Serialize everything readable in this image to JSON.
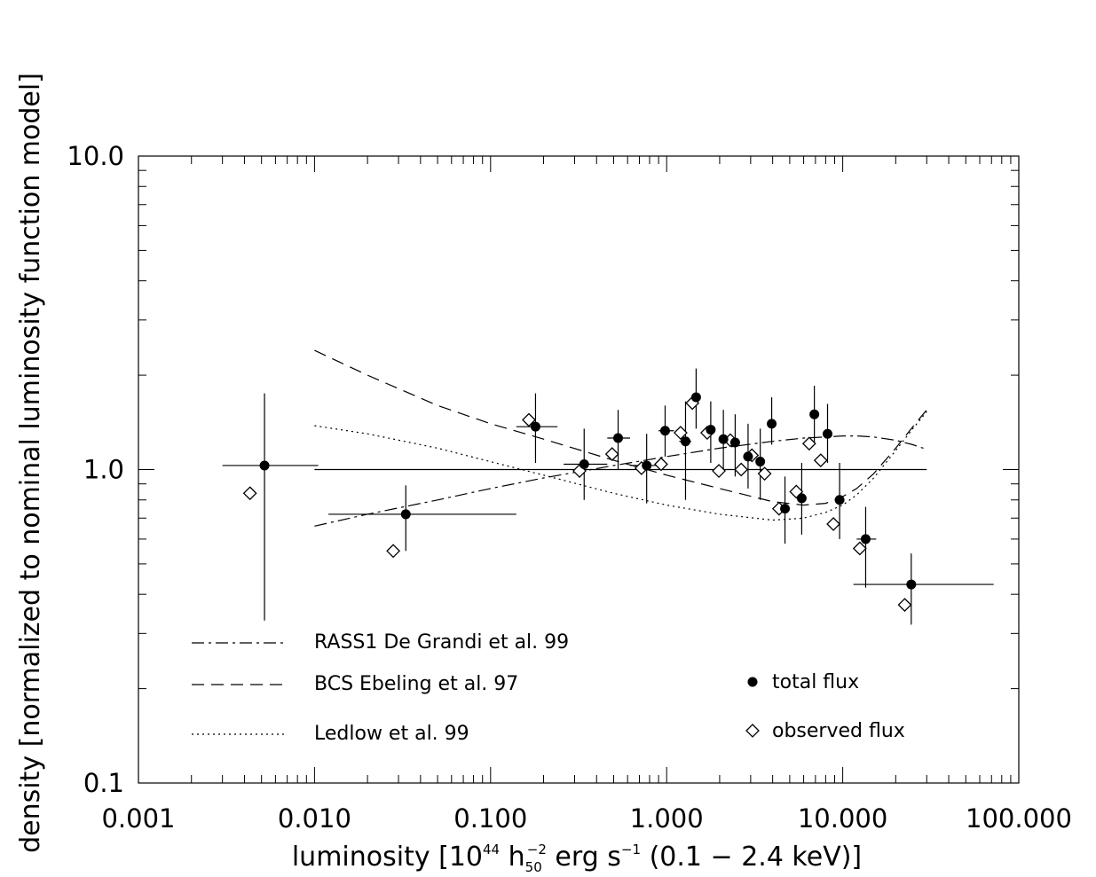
{
  "chart_data": {
    "type": "scatter",
    "xlabel": {
      "main": "luminosity [10",
      "exp1": "44",
      "h": " h",
      "hsub": "50",
      "hsup": "−2",
      "unit": " erg s",
      "unitsup": "−1",
      "tail": " (0.1 − 2.4 keV)]"
    },
    "ylabel": "density [normalized to nominal luminosity function model]",
    "xscale": "log",
    "yscale": "log",
    "xlim": [
      0.001,
      100
    ],
    "ylim": [
      0.1,
      10
    ],
    "xtick_labels": [
      {
        "v": 0.001,
        "t": "0.001"
      },
      {
        "v": 0.01,
        "t": "0.010"
      },
      {
        "v": 0.1,
        "t": "0.100"
      },
      {
        "v": 1,
        "t": "1.000"
      },
      {
        "v": 10,
        "t": "10.000"
      },
      {
        "v": 100,
        "t": "100.000"
      }
    ],
    "ytick_labels": [
      {
        "v": 0.1,
        "t": "0.1"
      },
      {
        "v": 1,
        "t": "1.0"
      },
      {
        "v": 10,
        "t": "10.0"
      }
    ],
    "reference_line": {
      "y": 1.0,
      "x": [
        0.01,
        30
      ]
    },
    "series": [
      {
        "name": "total flux",
        "marker": "filled-circle",
        "points": [
          {
            "x": 0.0052,
            "y": 1.03,
            "xerr": [
              0.003,
              0.0105
            ],
            "yerr": [
              0.33,
              1.75
            ]
          },
          {
            "x": 0.033,
            "y": 0.72,
            "xerr": [
              0.012,
              0.14
            ],
            "yerr": [
              0.55,
              0.89
            ]
          },
          {
            "x": 0.18,
            "y": 1.37,
            "xerr": [
              0.14,
              0.24
            ],
            "yerr": [
              1.05,
              1.75
            ]
          },
          {
            "x": 0.34,
            "y": 1.04,
            "xerr": [
              0.26,
              0.46
            ],
            "yerr": [
              0.8,
              1.35
            ]
          },
          {
            "x": 0.53,
            "y": 1.26,
            "xerr": [
              0.46,
              0.62
            ],
            "yerr": [
              1.0,
              1.55
            ]
          },
          {
            "x": 0.77,
            "y": 1.03,
            "xerr": [
              0.62,
              0.9
            ],
            "yerr": [
              0.78,
              1.3
            ]
          },
          {
            "x": 0.98,
            "y": 1.33,
            "xerr": [
              0.9,
              1.1
            ],
            "yerr": [
              1.1,
              1.6
            ]
          },
          {
            "x": 1.28,
            "y": 1.23,
            "xerr": [
              1.18,
              1.38
            ],
            "yerr": [
              0.8,
              1.65
            ]
          },
          {
            "x": 1.47,
            "y": 1.7,
            "xerr": [
              1.4,
              1.55
            ],
            "yerr": [
              1.35,
              2.1
            ]
          },
          {
            "x": 1.78,
            "y": 1.34,
            "xerr": [
              1.68,
              1.88
            ],
            "yerr": [
              1.05,
              1.65
            ]
          },
          {
            "x": 2.1,
            "y": 1.25,
            "xerr": [
              2.0,
              2.2
            ],
            "yerr": [
              1.0,
              1.55
            ]
          },
          {
            "x": 2.45,
            "y": 1.22,
            "xerr": [
              2.35,
              2.55
            ],
            "yerr": [
              0.95,
              1.5
            ]
          },
          {
            "x": 2.9,
            "y": 1.1,
            "xerr": [
              2.8,
              3.0
            ],
            "yerr": [
              0.87,
              1.4
            ]
          },
          {
            "x": 3.4,
            "y": 1.06,
            "xerr": [
              3.3,
              3.5
            ],
            "yerr": [
              0.8,
              1.35
            ]
          },
          {
            "x": 3.95,
            "y": 1.4,
            "xerr": [
              3.85,
              4.05
            ],
            "yerr": [
              1.2,
              1.7
            ]
          },
          {
            "x": 4.7,
            "y": 0.75,
            "xerr": [
              4.5,
              4.9
            ],
            "yerr": [
              0.58,
              0.95
            ]
          },
          {
            "x": 5.85,
            "y": 0.81,
            "xerr": [
              5.6,
              6.1
            ],
            "yerr": [
              0.62,
              1.05
            ]
          },
          {
            "x": 6.9,
            "y": 1.5,
            "xerr": [
              6.6,
              7.2
            ],
            "yerr": [
              1.2,
              1.85
            ]
          },
          {
            "x": 8.2,
            "y": 1.3,
            "xerr": [
              7.9,
              8.5
            ],
            "yerr": [
              1.05,
              1.62
            ]
          },
          {
            "x": 9.6,
            "y": 0.8,
            "xerr": [
              9.2,
              10.0
            ],
            "yerr": [
              0.6,
              1.05
            ]
          },
          {
            "x": 13.5,
            "y": 0.6,
            "xerr": [
              12.0,
              15.5
            ],
            "yerr": [
              0.42,
              0.76
            ]
          },
          {
            "x": 24.5,
            "y": 0.43,
            "xerr": [
              11.5,
              72.0
            ],
            "yerr": [
              0.32,
              0.54
            ]
          }
        ]
      },
      {
        "name": "observed flux",
        "marker": "open-diamond",
        "points": [
          {
            "x": 0.0043,
            "y": 0.84
          },
          {
            "x": 0.028,
            "y": 0.55
          },
          {
            "x": 0.165,
            "y": 1.44
          },
          {
            "x": 0.32,
            "y": 0.99
          },
          {
            "x": 0.49,
            "y": 1.12
          },
          {
            "x": 0.72,
            "y": 1.01
          },
          {
            "x": 0.93,
            "y": 1.04
          },
          {
            "x": 1.2,
            "y": 1.31
          },
          {
            "x": 1.4,
            "y": 1.63
          },
          {
            "x": 1.7,
            "y": 1.31
          },
          {
            "x": 1.98,
            "y": 0.99
          },
          {
            "x": 2.3,
            "y": 1.24
          },
          {
            "x": 2.65,
            "y": 1.0
          },
          {
            "x": 3.05,
            "y": 1.11
          },
          {
            "x": 3.6,
            "y": 0.97
          },
          {
            "x": 4.35,
            "y": 0.75
          },
          {
            "x": 5.45,
            "y": 0.85
          },
          {
            "x": 6.45,
            "y": 1.21
          },
          {
            "x": 7.5,
            "y": 1.07
          },
          {
            "x": 8.85,
            "y": 0.67
          },
          {
            "x": 12.5,
            "y": 0.56
          },
          {
            "x": 22.5,
            "y": 0.37
          }
        ]
      }
    ],
    "model_curves": [
      {
        "name": "RASS1 De Grandi et al. 99",
        "style": "dash-dot",
        "x": [
          0.01,
          0.02,
          0.05,
          0.1,
          0.2,
          0.5,
          1,
          2,
          4,
          6,
          8,
          10,
          12,
          15,
          20,
          25,
          30
        ],
        "y": [
          0.66,
          0.72,
          0.8,
          0.87,
          0.94,
          1.03,
          1.1,
          1.17,
          1.23,
          1.26,
          1.27,
          1.28,
          1.28,
          1.27,
          1.24,
          1.2,
          1.16
        ]
      },
      {
        "name": "BCS Ebeling et al. 97",
        "style": "dashed",
        "x": [
          0.01,
          0.02,
          0.05,
          0.1,
          0.2,
          0.5,
          1,
          2,
          4,
          6,
          8,
          10,
          12,
          15,
          20,
          25,
          30
        ],
        "y": [
          2.4,
          2.0,
          1.6,
          1.4,
          1.25,
          1.07,
          0.96,
          0.87,
          0.79,
          0.77,
          0.78,
          0.82,
          0.87,
          0.97,
          1.17,
          1.37,
          1.55
        ]
      },
      {
        "name": "Ledlow et al. 99",
        "style": "dotted",
        "x": [
          0.01,
          0.02,
          0.05,
          0.1,
          0.2,
          0.5,
          1,
          2,
          4,
          6,
          8,
          10,
          12,
          15,
          20,
          25,
          30
        ],
        "y": [
          1.38,
          1.3,
          1.17,
          1.06,
          0.96,
          0.84,
          0.77,
          0.72,
          0.69,
          0.7,
          0.73,
          0.77,
          0.83,
          0.94,
          1.15,
          1.35,
          1.53
        ]
      }
    ],
    "legend": {
      "placement": "bottom",
      "entries": [
        {
          "label": "RASS1 De Grandi et al. 99",
          "style": "dash-dot"
        },
        {
          "label": "BCS Ebeling et al. 97",
          "style": "dashed"
        },
        {
          "label": "Ledlow et al. 99",
          "style": "dotted"
        },
        {
          "label": "total flux",
          "marker": "filled-circle"
        },
        {
          "label": "observed flux",
          "marker": "open-diamond"
        }
      ]
    }
  }
}
